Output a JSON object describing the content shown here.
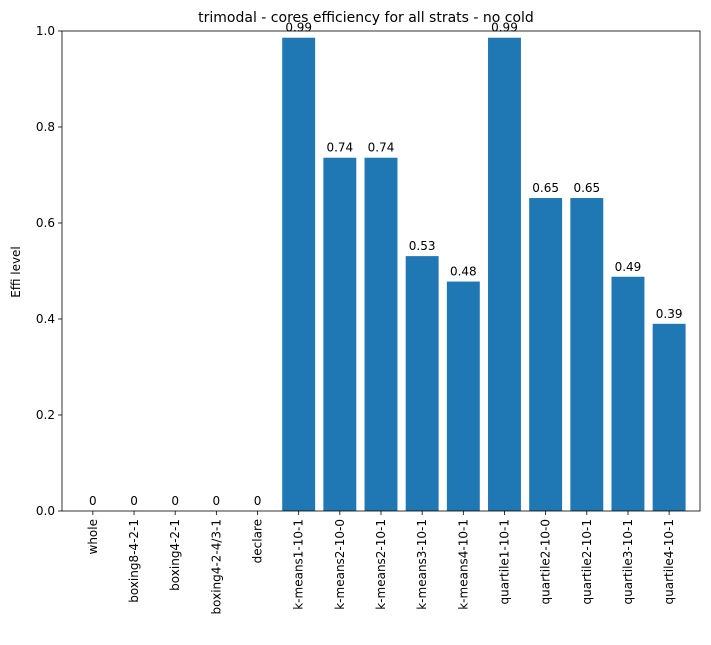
{
  "chart_data": {
    "type": "bar",
    "title": "trimodal - cores efficiency for all strats - no cold",
    "xlabel": "",
    "ylabel": "Effi level",
    "ylim": [
      0,
      1.0
    ],
    "yticks": [
      "0.0",
      "0.2",
      "0.4",
      "0.6",
      "0.8",
      "1.0"
    ],
    "grid": false,
    "categories": [
      "whole",
      "boxing8-4-2-1",
      "boxing4-2-1",
      "boxing4-2-4/3-1",
      "declare",
      "k-means1-10-1",
      "k-means2-10-0",
      "k-means2-10-1",
      "k-means3-10-1",
      "k-means4-10-1",
      "quartile1-10-1",
      "quartile2-10-0",
      "quartile2-10-1",
      "quartile3-10-1",
      "quartile4-10-1"
    ],
    "values": [
      0,
      0,
      0,
      0,
      0,
      0.986,
      0.736,
      0.736,
      0.531,
      0.478,
      0.986,
      0.652,
      0.652,
      0.488,
      0.39
    ],
    "data_labels": [
      "0",
      "0",
      "0",
      "0",
      "0",
      "0.99",
      "0.74",
      "0.74",
      "0.53",
      "0.48",
      "0.99",
      "0.65",
      "0.65",
      "0.49",
      "0.39"
    ],
    "bar_color": "#1f77b4"
  }
}
